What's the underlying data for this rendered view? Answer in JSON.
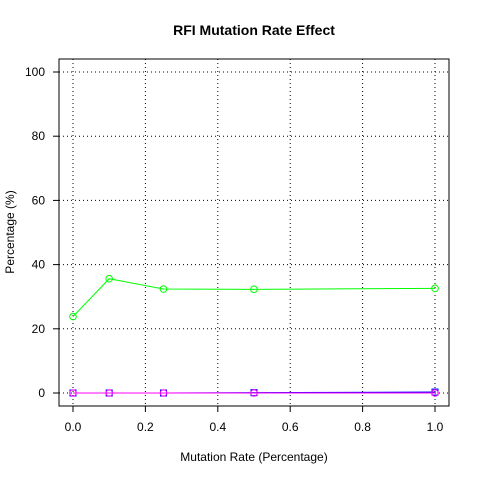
{
  "chart_data": {
    "type": "line",
    "title": "RFI Mutation Rate Effect",
    "xlabel": "Mutation Rate (Percentage)",
    "ylabel": "Percentage (%)",
    "xlim": [
      0.0,
      1.0
    ],
    "ylim": [
      0,
      100
    ],
    "xticks": [
      0.0,
      0.2,
      0.4,
      0.6,
      0.8,
      1.0
    ],
    "xtick_labels": [
      "0.0",
      "0.2",
      "0.4",
      "0.6",
      "0.8",
      "1.0"
    ],
    "yticks": [
      0,
      20,
      40,
      60,
      80,
      100
    ],
    "ytick_labels": [
      "0",
      "20",
      "40",
      "60",
      "80",
      "100"
    ],
    "grid": true,
    "x": [
      0.0,
      0.1,
      0.25,
      0.5,
      1.0
    ],
    "series": [
      {
        "color": "#00ff00",
        "marker": "circle",
        "values": [
          23.8,
          35.6,
          32.4,
          32.3,
          32.6
        ]
      },
      {
        "color": "#0000ff",
        "marker": "square",
        "values": [
          0.0,
          0.0,
          0.0,
          0.1,
          0.3
        ]
      },
      {
        "color": "#ff00ff",
        "marker": "circle",
        "values": [
          0.0,
          0.0,
          0.0,
          0.0,
          0.0
        ]
      }
    ]
  }
}
